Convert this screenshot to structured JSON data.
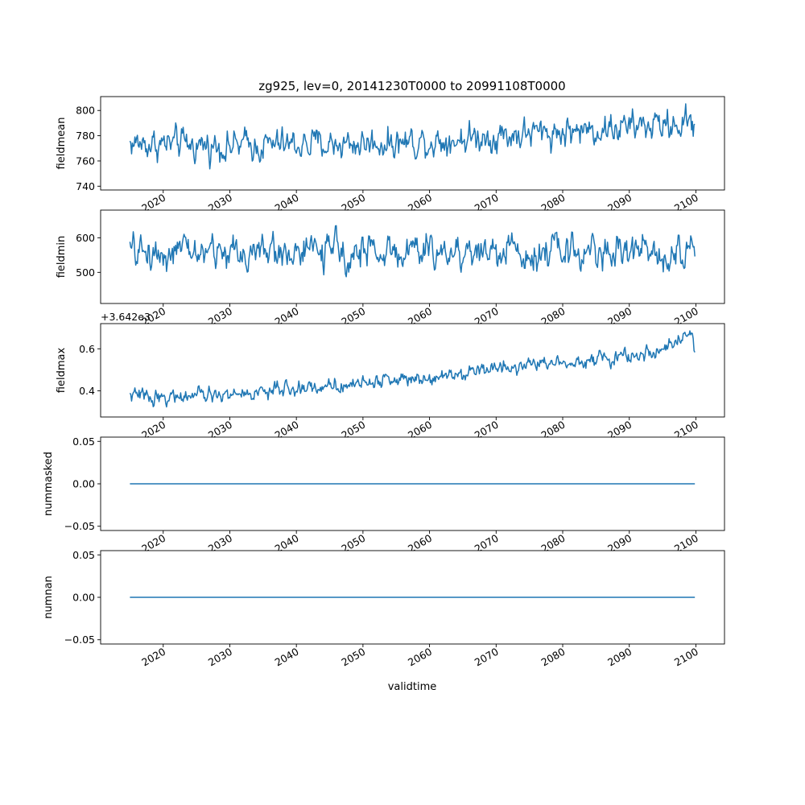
{
  "figure": {
    "title": "zg925, lev=0, 20141230T0000 to 20991108T0000",
    "xlabel": "validtime"
  },
  "colors": {
    "line": "#1f77b4",
    "axes": "#000000",
    "background": "#ffffff"
  },
  "chart_data": [
    {
      "type": "line",
      "ylabel": "fieldmean",
      "xlim": [
        2010.6,
        2104.3
      ],
      "ylim": [
        737,
        811
      ],
      "yticks": [
        740,
        760,
        780,
        800
      ],
      "yticklabels": [
        "740",
        "760",
        "780",
        "800"
      ],
      "offset_text": "",
      "x_start": 2015.0,
      "x_end": 2099.85,
      "trend": [
        [
          2015,
          774
        ],
        [
          2030,
          772
        ],
        [
          2050,
          774
        ],
        [
          2060,
          776
        ],
        [
          2070,
          780
        ],
        [
          2080,
          783
        ],
        [
          2090,
          787
        ],
        [
          2099.85,
          790
        ]
      ],
      "noise_amplitude": 12,
      "points": 680,
      "grid": false
    },
    {
      "type": "line",
      "ylabel": "fieldmin",
      "xlim": [
        2010.6,
        2104.3
      ],
      "ylim": [
        410,
        680
      ],
      "yticks": [
        500,
        600
      ],
      "yticklabels": [
        "500",
        "600"
      ],
      "offset_text": "",
      "x_start": 2015.0,
      "x_end": 2099.85,
      "trend": [
        [
          2015,
          558
        ],
        [
          2050,
          560
        ],
        [
          2099.85,
          562
        ]
      ],
      "noise_amplitude": 48,
      "points": 680,
      "grid": false
    },
    {
      "type": "line",
      "ylabel": "fieldmax",
      "xlim": [
        2010.6,
        2104.3
      ],
      "ylim": [
        0.275,
        0.72
      ],
      "yticks": [
        0.4,
        0.6
      ],
      "yticklabels": [
        "0.4",
        "0.6"
      ],
      "offset_text": "+3.642e3",
      "x_start": 2015.0,
      "x_end": 2099.85,
      "trend": [
        [
          2015,
          0.38
        ],
        [
          2020,
          0.37
        ],
        [
          2030,
          0.38
        ],
        [
          2040,
          0.41
        ],
        [
          2050,
          0.44
        ],
        [
          2060,
          0.47
        ],
        [
          2070,
          0.51
        ],
        [
          2080,
          0.54
        ],
        [
          2090,
          0.56
        ],
        [
          2097,
          0.62
        ],
        [
          2099.3,
          0.67
        ],
        [
          2099.85,
          0.6
        ]
      ],
      "noise_amplitude": 0.035,
      "points": 680,
      "grid": false
    },
    {
      "type": "line",
      "ylabel": "nummasked",
      "xlim": [
        2010.6,
        2104.3
      ],
      "ylim": [
        -0.055,
        0.055
      ],
      "yticks": [
        -0.05,
        0.0,
        0.05
      ],
      "yticklabels": [
        "−0.05",
        "0.00",
        "0.05"
      ],
      "offset_text": "",
      "x_start": 2015.0,
      "x_end": 2099.85,
      "trend": [
        [
          2015,
          0
        ],
        [
          2099.85,
          0
        ]
      ],
      "noise_amplitude": 0,
      "points": 2,
      "grid": false
    },
    {
      "type": "line",
      "ylabel": "numnan",
      "xlim": [
        2010.6,
        2104.3
      ],
      "ylim": [
        -0.055,
        0.055
      ],
      "yticks": [
        -0.05,
        0.0,
        0.05
      ],
      "yticklabels": [
        "−0.05",
        "0.00",
        "0.05"
      ],
      "offset_text": "",
      "x_start": 2015.0,
      "x_end": 2099.85,
      "trend": [
        [
          2015,
          0
        ],
        [
          2099.85,
          0
        ]
      ],
      "noise_amplitude": 0,
      "points": 2,
      "grid": false
    }
  ],
  "xticks": [
    2020,
    2030,
    2040,
    2050,
    2060,
    2070,
    2080,
    2090,
    2100
  ],
  "xticklabels": [
    "2020",
    "2030",
    "2040",
    "2050",
    "2060",
    "2070",
    "2080",
    "2090",
    "2100"
  ]
}
